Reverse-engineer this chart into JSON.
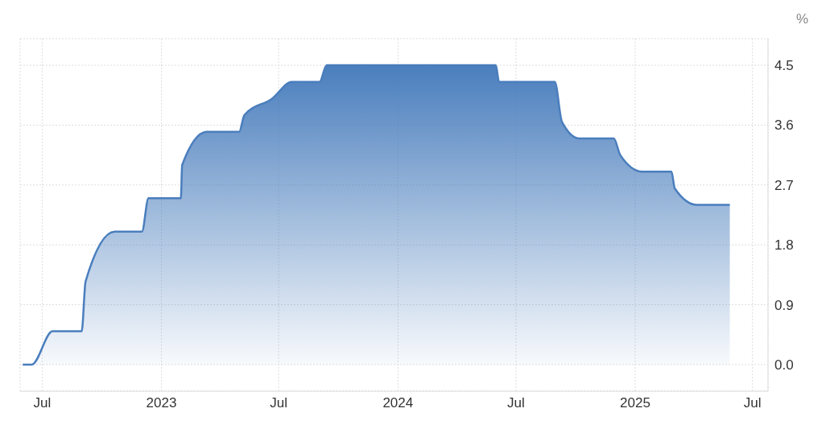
{
  "chart_data": {
    "type": "area",
    "ylabel": "%",
    "x": [
      "2022-06-01",
      "2022-06-15",
      "2022-07-17",
      "2022-08-31",
      "2022-09-06",
      "2022-10-21",
      "2022-12-02",
      "2022-12-12",
      "2023-01-31",
      "2023-02-02",
      "2023-03-12",
      "2023-05-01",
      "2023-05-09",
      "2023-06-21",
      "2023-07-21",
      "2023-09-02",
      "2023-09-13",
      "2024-05-31",
      "2024-06-05",
      "2024-08-30",
      "2024-09-10",
      "2024-10-07",
      "2024-11-29",
      "2024-12-09",
      "2025-01-12",
      "2025-02-26",
      "2025-03-03",
      "2025-04-07",
      "2025-05-27"
    ],
    "series": [
      {
        "color": "#4a7ebd",
        "values": [
          0,
          0,
          0.5,
          0.5,
          1.25,
          2.0,
          2.0,
          2.5,
          2.5,
          3.0,
          3.5,
          3.5,
          3.75,
          4.0,
          4.25,
          4.25,
          4.5,
          4.5,
          4.25,
          4.25,
          3.65,
          3.4,
          3.4,
          3.15,
          2.9,
          2.9,
          2.65,
          2.4,
          2.4
        ]
      }
    ],
    "xlim": [
      "2022-05-28",
      "2025-07-25"
    ],
    "xticks": [
      {
        "value": "2022-07-01",
        "label": "Jul"
      },
      {
        "value": "2023-01-01",
        "label": "2023"
      },
      {
        "value": "2023-07-01",
        "label": "Jul"
      },
      {
        "value": "2024-01-01",
        "label": "2024"
      },
      {
        "value": "2024-07-01",
        "label": "Jul"
      },
      {
        "value": "2025-01-01",
        "label": "2025"
      },
      {
        "value": "2025-07-01",
        "label": "Jul"
      }
    ],
    "ylim": [
      -0.4,
      4.9
    ],
    "yticks": [
      {
        "value": 0,
        "label": "0.0"
      },
      {
        "value": 0.9,
        "label": "0.9"
      },
      {
        "value": 1.8,
        "label": "1.8"
      },
      {
        "value": 2.7,
        "label": "2.7"
      },
      {
        "value": 3.6,
        "label": "3.6"
      },
      {
        "value": 4.5,
        "label": "4.5"
      }
    ],
    "grid": true,
    "marker": "none",
    "line_style": "solid"
  }
}
